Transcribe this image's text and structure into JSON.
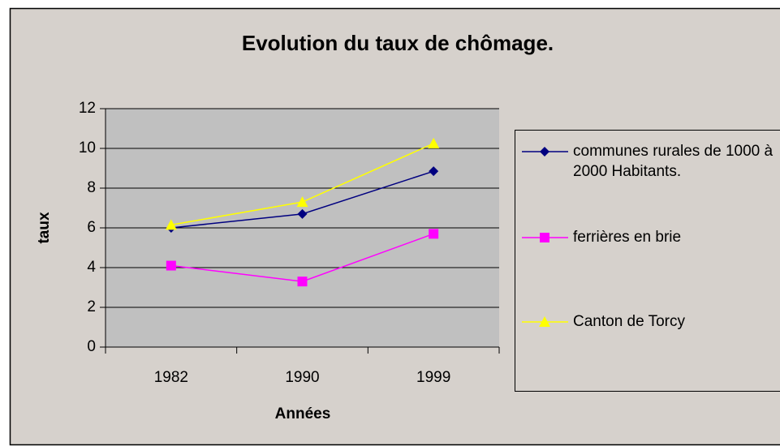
{
  "chart_data": {
    "type": "line",
    "title": "Evolution du taux de chômage.",
    "x_label": "Années",
    "y_label": "taux",
    "categories": [
      "1982",
      "1990",
      "1999"
    ],
    "series": [
      {
        "name": "communes rurales de 1000 à 2000 Habitants.",
        "color": "#000080",
        "marker": "diamond",
        "values": [
          6.0,
          6.7,
          8.85
        ]
      },
      {
        "name": "ferrières en brie",
        "color": "#ff00ff",
        "marker": "square",
        "values": [
          4.1,
          3.3,
          5.7
        ]
      },
      {
        "name": "Canton de Torcy",
        "color": "#ffff00",
        "marker": "triangle",
        "values": [
          6.15,
          7.3,
          10.25
        ]
      }
    ],
    "ylim": [
      0,
      12
    ],
    "yticks": [
      0,
      2,
      4,
      6,
      8,
      10,
      12
    ],
    "grid": true,
    "legend": "right"
  }
}
